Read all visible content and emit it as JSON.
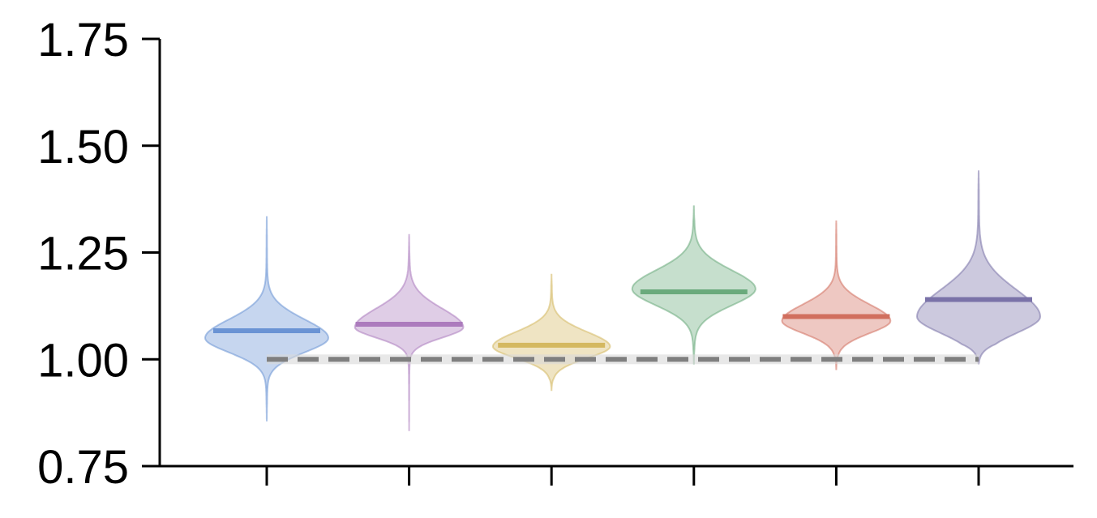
{
  "chart_data": {
    "type": "violin",
    "title": "",
    "xlabel": "",
    "ylabel": "",
    "ylim": [
      0.75,
      1.75
    ],
    "yticks": [
      0.75,
      1.0,
      1.25,
      1.5,
      1.75
    ],
    "ytick_labels": [
      "0.75",
      "1.00",
      "1.25",
      "1.50",
      "1.75"
    ],
    "grid": false,
    "legend": "none",
    "reference_line": {
      "y": 1.0,
      "style": "dashed",
      "color": "#7f7f7f"
    },
    "series": [
      {
        "color": "#6a93d4",
        "median": 1.067,
        "min": 0.855,
        "max": 1.335,
        "mode": 1.05,
        "sigma_low": 0.035,
        "sigma_high": 0.045,
        "width": 1.0
      },
      {
        "color": "#ac7bbd",
        "median": 1.082,
        "min": 0.832,
        "max": 1.293,
        "mode": 1.075,
        "sigma_low": 0.025,
        "sigma_high": 0.045,
        "width": 0.88
      },
      {
        "color": "#d4b860",
        "median": 1.033,
        "min": 0.928,
        "max": 1.2,
        "mode": 1.03,
        "sigma_low": 0.028,
        "sigma_high": 0.035,
        "width": 0.95
      },
      {
        "color": "#6aaa7c",
        "median": 1.158,
        "min": 0.988,
        "max": 1.36,
        "mode": 1.165,
        "sigma_low": 0.04,
        "sigma_high": 0.045,
        "width": 1.0
      },
      {
        "color": "#d16f5e",
        "median": 1.1,
        "min": 0.975,
        "max": 1.325,
        "mode": 1.09,
        "sigma_low": 0.03,
        "sigma_high": 0.04,
        "width": 0.88
      },
      {
        "color": "#7a72a8",
        "median": 1.14,
        "min": 0.99,
        "max": 1.442,
        "mode": 1.1,
        "sigma_low": 0.04,
        "sigma_high": 0.065,
        "width": 1.0
      }
    ],
    "colors": {
      "axis": "#000000"
    }
  }
}
